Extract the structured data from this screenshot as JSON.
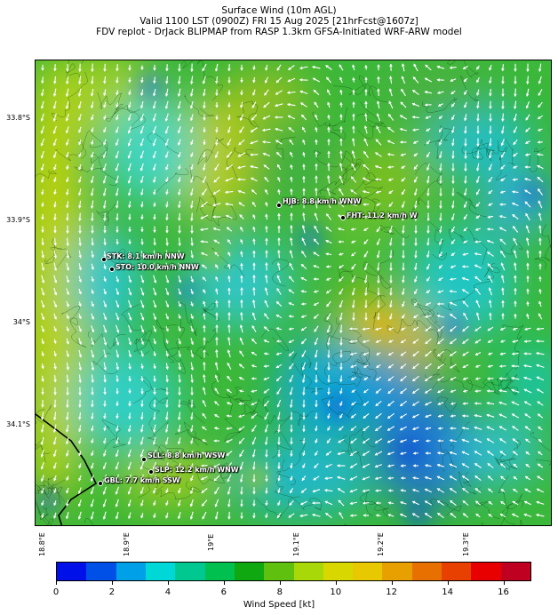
{
  "title": {
    "line1": "Surface Wind (10m AGL)",
    "line2": "Valid 1100 LST (0900Z) FRI 15 Aug 2025 [21hrFcst@1607z]",
    "line3": "FDV replot - DrJack BLIPMAP from RASP 1.3km GFSA-Initiated WRF-ARW model"
  },
  "axes": {
    "lat_labels": [
      "33.8°S",
      "33.9°S",
      "34°S",
      "34.1°S"
    ],
    "lon_labels": [
      "18.8°E",
      "18.9°E",
      "19°E",
      "19.1°E",
      "19.2°E",
      "19.3°E"
    ]
  },
  "stations": [
    {
      "label": "HJB: 8.8 km/h WNW"
    },
    {
      "label": "FHT: 11.2 km/h W"
    },
    {
      "label": "STK: 8.1 km/h NNW"
    },
    {
      "label": "STO: 10.0 km/h NNW"
    },
    {
      "label": "SLL: 8.8 km/h WSW"
    },
    {
      "label": "SLP: 12.2 km/h WNW"
    },
    {
      "label": "GBL: 7.7 km/h SSW"
    }
  ],
  "colorbar": {
    "label": "Wind Speed [kt]",
    "ticks": [
      "0",
      "2",
      "4",
      "6",
      "8",
      "10",
      "12",
      "14",
      "16"
    ],
    "colors": [
      "#0010e8",
      "#0050e8",
      "#00a0e8",
      "#00d8d8",
      "#00c890",
      "#00c050",
      "#10a810",
      "#60c010",
      "#a8d808",
      "#d8d800",
      "#e8c800",
      "#e8a000",
      "#e87000",
      "#e84000",
      "#e80000",
      "#c00020"
    ]
  }
}
